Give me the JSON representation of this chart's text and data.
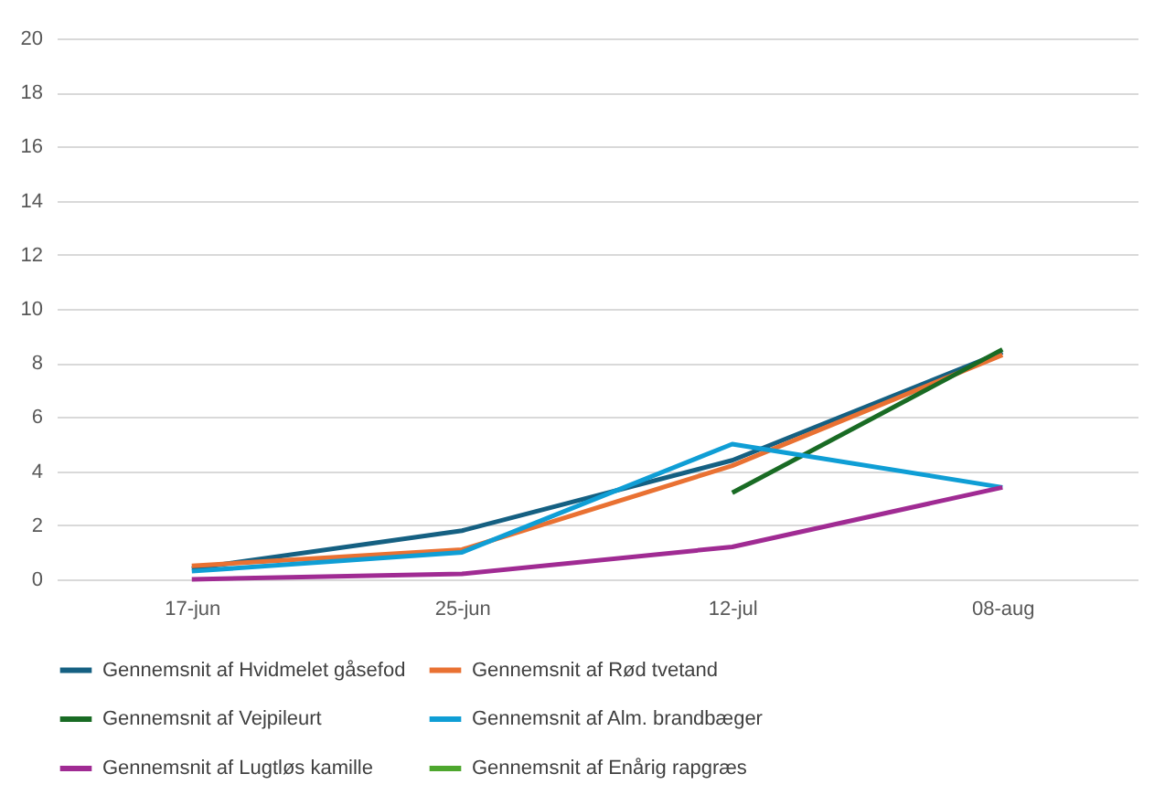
{
  "chart_data": {
    "type": "line",
    "categories": [
      "17-jun",
      "25-jun",
      "12-jul",
      "08-aug"
    ],
    "series": [
      {
        "name": "Gennemsnit af Hvidmelet gåsefod",
        "color": "#156082",
        "values": [
          0.4,
          1.8,
          4.4,
          8.4
        ]
      },
      {
        "name": "Gennemsnit af Rød tvetand",
        "color": "#e97132",
        "values": [
          0.5,
          1.1,
          4.2,
          8.3
        ]
      },
      {
        "name": "Gennemsnit af Vejpileurt",
        "color": "#196b24",
        "values": [
          null,
          null,
          3.2,
          8.5
        ]
      },
      {
        "name": "Gennemsnit af Alm. brandbæger",
        "color": "#0f9ed5",
        "values": [
          0.3,
          1.0,
          5.0,
          3.4
        ]
      },
      {
        "name": "Gennemsnit af Lugtløs kamille",
        "color": "#a02b93",
        "values": [
          0.0,
          0.2,
          1.2,
          3.4
        ]
      },
      {
        "name": "Gennemsnit af Enårig rapgræs",
        "color": "#4ea72e",
        "values": [
          null,
          null,
          null,
          null
        ]
      }
    ],
    "ylim": [
      0,
      20
    ],
    "yticks": [
      0,
      2,
      4,
      6,
      8,
      10,
      12,
      14,
      16,
      18,
      20
    ],
    "grid": "y",
    "legend": "bottom",
    "line_style": "solid",
    "marker": "none"
  }
}
